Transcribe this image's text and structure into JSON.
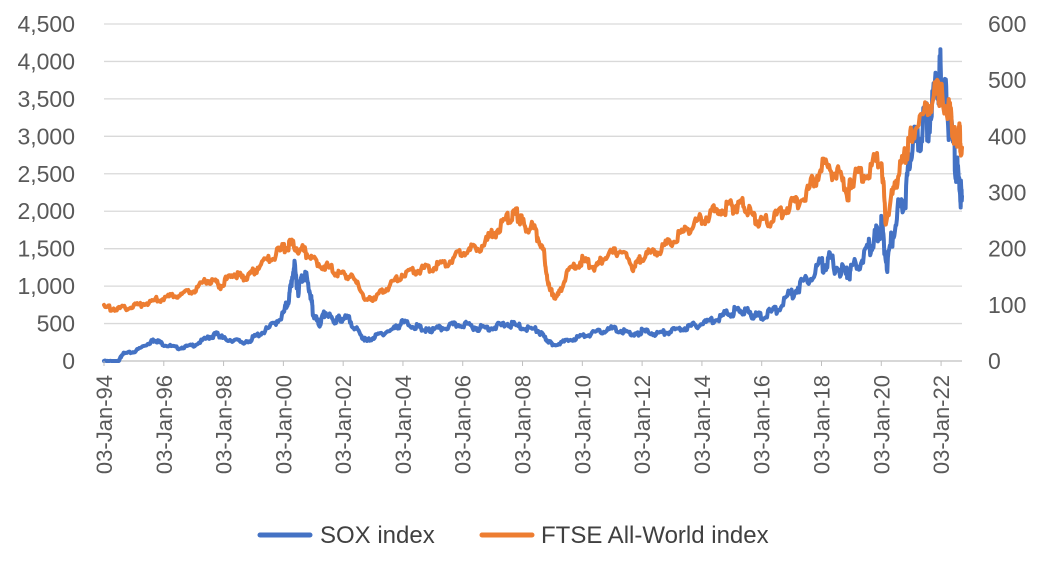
{
  "chart_data": {
    "type": "line",
    "title": "",
    "xlabel": "",
    "ylabel": "",
    "y2label": "",
    "x_range": [
      1994.0,
      2022.7
    ],
    "ylim_left": [
      0,
      4500
    ],
    "ylim_right": [
      0,
      600
    ],
    "grid": true,
    "legend_position": "bottom",
    "left_ticks": [
      "0",
      "500",
      "1,000",
      "1,500",
      "2,000",
      "2,500",
      "3,000",
      "3,500",
      "4,000",
      "4,500"
    ],
    "left_tick_values": [
      0,
      500,
      1000,
      1500,
      2000,
      2500,
      3000,
      3500,
      4000,
      4500
    ],
    "right_ticks": [
      "0",
      "100",
      "200",
      "300",
      "400",
      "500",
      "600"
    ],
    "right_tick_values": [
      0,
      100,
      200,
      300,
      400,
      500,
      600
    ],
    "x_ticks": [
      "03-Jan-94",
      "03-Jan-96",
      "03-Jan-98",
      "03-Jan-00",
      "03-Jan-02",
      "03-Jan-04",
      "03-Jan-06",
      "03-Jan-08",
      "03-Jan-10",
      "03-Jan-12",
      "03-Jan-14",
      "03-Jan-16",
      "03-Jan-18",
      "03-Jan-20",
      "03-Jan-22"
    ],
    "x_tick_values": [
      1994,
      1996,
      1998,
      2000,
      2002,
      2004,
      2006,
      2008,
      2010,
      2012,
      2014,
      2016,
      2018,
      2020,
      2022
    ],
    "series": [
      {
        "name": "SOX index",
        "axis": "left",
        "color": "#4472C4",
        "points": [
          [
            1994.0,
            0
          ],
          [
            1994.5,
            0
          ],
          [
            1994.6,
            100
          ],
          [
            1995.0,
            130
          ],
          [
            1995.5,
            250
          ],
          [
            1995.7,
            300
          ],
          [
            1996.0,
            230
          ],
          [
            1996.5,
            180
          ],
          [
            1997.0,
            220
          ],
          [
            1997.5,
            330
          ],
          [
            1997.8,
            380
          ],
          [
            1998.0,
            310
          ],
          [
            1998.5,
            280
          ],
          [
            1998.8,
            250
          ],
          [
            1999.0,
            330
          ],
          [
            1999.5,
            450
          ],
          [
            2000.0,
            650
          ],
          [
            2000.2,
            900
          ],
          [
            2000.35,
            1330
          ],
          [
            2000.5,
            1000
          ],
          [
            2000.7,
            1250
          ],
          [
            2000.9,
            950
          ],
          [
            2001.0,
            650
          ],
          [
            2001.2,
            500
          ],
          [
            2001.4,
            680
          ],
          [
            2001.7,
            550
          ],
          [
            2001.9,
            600
          ],
          [
            2002.2,
            580
          ],
          [
            2002.6,
            350
          ],
          [
            2002.8,
            280
          ],
          [
            2003.2,
            370
          ],
          [
            2003.7,
            450
          ],
          [
            2004.0,
            540
          ],
          [
            2004.5,
            470
          ],
          [
            2004.8,
            420
          ],
          [
            2005.0,
            430
          ],
          [
            2005.5,
            480
          ],
          [
            2006.0,
            520
          ],
          [
            2006.5,
            460
          ],
          [
            2007.0,
            470
          ],
          [
            2007.5,
            520
          ],
          [
            2008.0,
            470
          ],
          [
            2008.5,
            430
          ],
          [
            2008.8,
            300
          ],
          [
            2009.0,
            230
          ],
          [
            2009.5,
            280
          ],
          [
            2010.0,
            350
          ],
          [
            2010.5,
            400
          ],
          [
            2011.0,
            450
          ],
          [
            2011.5,
            400
          ],
          [
            2011.8,
            360
          ],
          [
            2012.0,
            420
          ],
          [
            2012.5,
            380
          ],
          [
            2013.0,
            420
          ],
          [
            2013.5,
            470
          ],
          [
            2014.0,
            520
          ],
          [
            2014.5,
            600
          ],
          [
            2015.0,
            680
          ],
          [
            2015.3,
            720
          ],
          [
            2015.7,
            650
          ],
          [
            2016.0,
            620
          ],
          [
            2016.5,
            720
          ],
          [
            2017.0,
            950
          ],
          [
            2017.5,
            1150
          ],
          [
            2018.0,
            1350
          ],
          [
            2018.3,
            1400
          ],
          [
            2018.8,
            1200
          ],
          [
            2019.0,
            1250
          ],
          [
            2019.5,
            1500
          ],
          [
            2019.8,
            1750
          ],
          [
            2020.0,
            1900
          ],
          [
            2020.2,
            1350
          ],
          [
            2020.5,
            2050
          ],
          [
            2020.8,
            2300
          ],
          [
            2021.0,
            2950
          ],
          [
            2021.3,
            3150
          ],
          [
            2021.6,
            3400
          ],
          [
            2021.9,
            3850
          ],
          [
            2022.0,
            4050
          ],
          [
            2022.2,
            3500
          ],
          [
            2022.45,
            2900
          ],
          [
            2022.6,
            2500
          ],
          [
            2022.7,
            2200
          ]
        ]
      },
      {
        "name": "FTSE All-World index",
        "axis": "right",
        "color": "#ED7D31",
        "points": [
          [
            1994.0,
            98
          ],
          [
            1994.5,
            95
          ],
          [
            1995.0,
            100
          ],
          [
            1995.5,
            108
          ],
          [
            1996.0,
            115
          ],
          [
            1996.5,
            120
          ],
          [
            1997.0,
            130
          ],
          [
            1997.5,
            148
          ],
          [
            1997.9,
            138
          ],
          [
            1998.3,
            160
          ],
          [
            1998.7,
            150
          ],
          [
            1999.0,
            165
          ],
          [
            1999.5,
            185
          ],
          [
            2000.0,
            205
          ],
          [
            2000.3,
            213
          ],
          [
            2000.7,
            200
          ],
          [
            2001.0,
            185
          ],
          [
            2001.5,
            170
          ],
          [
            2001.9,
            160
          ],
          [
            2002.3,
            155
          ],
          [
            2002.8,
            110
          ],
          [
            2003.1,
            118
          ],
          [
            2003.5,
            135
          ],
          [
            2004.0,
            160
          ],
          [
            2004.5,
            165
          ],
          [
            2005.0,
            172
          ],
          [
            2005.5,
            180
          ],
          [
            2006.0,
            200
          ],
          [
            2006.5,
            205
          ],
          [
            2007.0,
            230
          ],
          [
            2007.5,
            258
          ],
          [
            2007.8,
            270
          ],
          [
            2008.0,
            250
          ],
          [
            2008.4,
            240
          ],
          [
            2008.7,
            200
          ],
          [
            2008.9,
            130
          ],
          [
            2009.15,
            115
          ],
          [
            2009.5,
            160
          ],
          [
            2010.0,
            185
          ],
          [
            2010.4,
            170
          ],
          [
            2010.8,
            190
          ],
          [
            2011.3,
            205
          ],
          [
            2011.7,
            170
          ],
          [
            2012.0,
            190
          ],
          [
            2012.5,
            200
          ],
          [
            2013.0,
            220
          ],
          [
            2013.5,
            240
          ],
          [
            2014.0,
            260
          ],
          [
            2014.5,
            275
          ],
          [
            2015.0,
            280
          ],
          [
            2015.3,
            290
          ],
          [
            2015.7,
            265
          ],
          [
            2016.0,
            250
          ],
          [
            2016.5,
            265
          ],
          [
            2017.0,
            285
          ],
          [
            2017.5,
            305
          ],
          [
            2018.0,
            355
          ],
          [
            2018.5,
            345
          ],
          [
            2018.9,
            305
          ],
          [
            2019.0,
            330
          ],
          [
            2019.5,
            345
          ],
          [
            2020.0,
            375
          ],
          [
            2020.15,
            255
          ],
          [
            2020.5,
            330
          ],
          [
            2020.8,
            375
          ],
          [
            2021.0,
            410
          ],
          [
            2021.5,
            460
          ],
          [
            2021.9,
            495
          ],
          [
            2022.0,
            485
          ],
          [
            2022.3,
            450
          ],
          [
            2022.5,
            395
          ],
          [
            2022.6,
            420
          ],
          [
            2022.7,
            380
          ]
        ]
      }
    ]
  }
}
